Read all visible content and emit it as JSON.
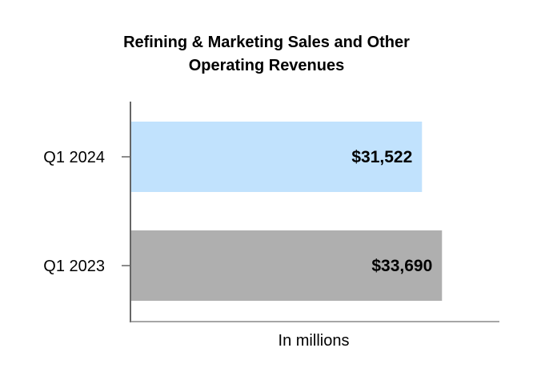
{
  "chart_data": {
    "type": "bar",
    "orientation": "horizontal",
    "title": [
      "Refining & Marketing Sales and Other",
      "Operating Revenues"
    ],
    "categories": [
      "Q1 2024",
      "Q1 2023"
    ],
    "values": [
      31522,
      33690
    ],
    "data_labels": [
      "$31,522",
      "$33,690"
    ],
    "colors": [
      "#c1e2fd",
      "#afafaf"
    ],
    "xlabel": "In millions",
    "ylabel": "",
    "xlim": [
      0,
      40000
    ],
    "grid": false,
    "legend": "none"
  }
}
